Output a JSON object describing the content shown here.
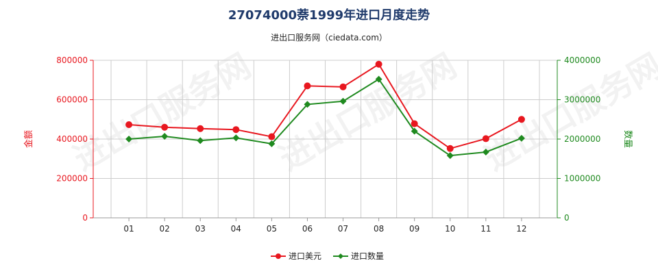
{
  "title": "27074000萘1999年进口月度走势",
  "subtitle": "进出口服务网（ciedata.com）",
  "watermark": "进出口服务网",
  "colors": {
    "series1": "#e8171f",
    "series2": "#1f8a1f",
    "left_axis": "#e8171f",
    "right_axis": "#1f8a1f",
    "grid": "#cccccc",
    "title": "#1f3a6b"
  },
  "chart_data": {
    "type": "line",
    "categories": [
      "01",
      "02",
      "03",
      "04",
      "05",
      "06",
      "07",
      "08",
      "09",
      "10",
      "11",
      "12"
    ],
    "y_left": {
      "label": "金额",
      "range": [
        0,
        800000
      ],
      "ticks": [
        "0",
        "200000",
        "400000",
        "600000",
        "800000"
      ],
      "tick_values": [
        0,
        200000,
        400000,
        600000,
        800000
      ]
    },
    "y_right": {
      "label": "数量",
      "range": [
        0,
        4000000
      ],
      "ticks": [
        "0",
        "1000000",
        "2000000",
        "3000000",
        "4000000"
      ],
      "tick_values": [
        0,
        1000000,
        2000000,
        3000000,
        4000000
      ]
    },
    "series": [
      {
        "name": "进口美元",
        "axis": "left",
        "color": "#e8171f",
        "marker": "circle",
        "values": [
          473000,
          460000,
          453000,
          448000,
          412000,
          670000,
          665000,
          780000,
          478000,
          352000,
          402000,
          500000
        ]
      },
      {
        "name": "进口数量",
        "axis": "right",
        "color": "#1f8a1f",
        "marker": "diamond",
        "values": [
          2000000,
          2070000,
          1960000,
          2030000,
          1880000,
          2880000,
          2960000,
          3520000,
          2200000,
          1580000,
          1670000,
          2020000
        ]
      }
    ],
    "grid": true,
    "legend": "bottom-center"
  }
}
